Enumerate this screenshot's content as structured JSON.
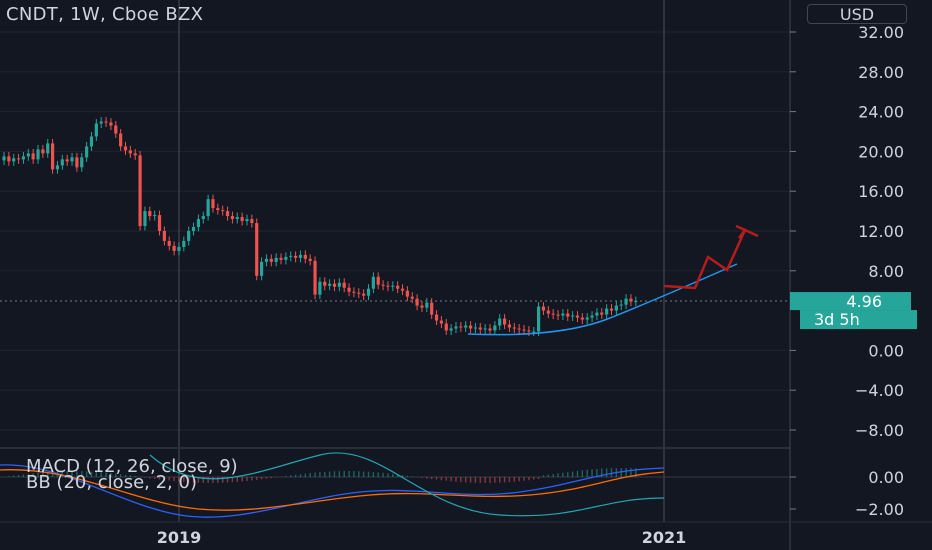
{
  "header": {
    "title": "CNDT, 1W, Cboe BZX",
    "currency": "USD"
  },
  "indicators": {
    "macd": "MACD (12, 26, close, 9)",
    "bb": "BB (20, close, 2, 0)"
  },
  "price_axis": {
    "ticks": [
      "32.00",
      "28.00",
      "24.00",
      "20.00",
      "16.00",
      "12.00",
      "8.00",
      "0.00",
      "−4.00",
      "−8.00"
    ],
    "tick_values": [
      32,
      28,
      24,
      20,
      16,
      12,
      8,
      0,
      -4,
      -8
    ],
    "last_price": "4.96",
    "countdown": "3d 5h"
  },
  "macd_axis": {
    "ticks": [
      "0.00",
      "−2.00"
    ],
    "tick_values": [
      0,
      -2
    ]
  },
  "time_axis": {
    "labels": [
      "2019",
      "2021"
    ]
  },
  "colors": {
    "up": "#26a69a",
    "down": "#ef5350",
    "cup": "#2196f3",
    "projection": "#b71c1c",
    "price_label": "#26a69a"
  },
  "chart_data": {
    "type": "candlestick",
    "symbol": "CNDT",
    "interval": "1W",
    "exchange": "Cboe BZX",
    "ylim": [
      -10,
      34
    ],
    "last_price": 4.96,
    "series": [
      {
        "name": "Price",
        "values": [
          19.5,
          19,
          19.3,
          19.2,
          19.5,
          19.8,
          19.2,
          20.2,
          19.8,
          20.8,
          18.2,
          18.6,
          19.2,
          19.0,
          19.4,
          18.4,
          19.4,
          20.5,
          21.5,
          22.8,
          23.0,
          22.9,
          22.6,
          21.8,
          20.5,
          20.1,
          19.8,
          19.6,
          12.5,
          14,
          13.5,
          13.6,
          12,
          11,
          10.5,
          10,
          10.4,
          11,
          12,
          12.4,
          13.2,
          13.5,
          15.2,
          14.3,
          14.1,
          14.0,
          13.5,
          13.2,
          13.4,
          13.0,
          13.2,
          12.8,
          7.5,
          8.9,
          9.2,
          8.9,
          9.3,
          9.1,
          9.4,
          9.5,
          9.3,
          9.6,
          9.2,
          9.0,
          5.6,
          6.9,
          6.5,
          6.7,
          6.4,
          6.8,
          6.3,
          5.9,
          5.8,
          5.7,
          5.5,
          6.2,
          7.4,
          6.6,
          6.5,
          6.4,
          6.5,
          6.2,
          6.0,
          5.4,
          5.2,
          4.5,
          4.3,
          4.8,
          3.6,
          3.0,
          2.7,
          2.0,
          2.2,
          2.4,
          2.3,
          2.5,
          2.2,
          2.3,
          2.1,
          2.2,
          2.0,
          2.5,
          3.2,
          2.6,
          2.3,
          2.2,
          2.1,
          2.0,
          1.9,
          1.9,
          4.4,
          4.0,
          3.7,
          3.6,
          3.5,
          3.7,
          3.4,
          3.5,
          3.3,
          3.1,
          3.3,
          3.5,
          3.8,
          3.6,
          4.2,
          4.0,
          4.5,
          4.6,
          5.2,
          4.9,
          4.96
        ]
      }
    ],
    "annotations": [
      "rounded-bottom cup (blue curve)",
      "projected zig-zag up arrow (dark red)"
    ],
    "grid": true
  }
}
